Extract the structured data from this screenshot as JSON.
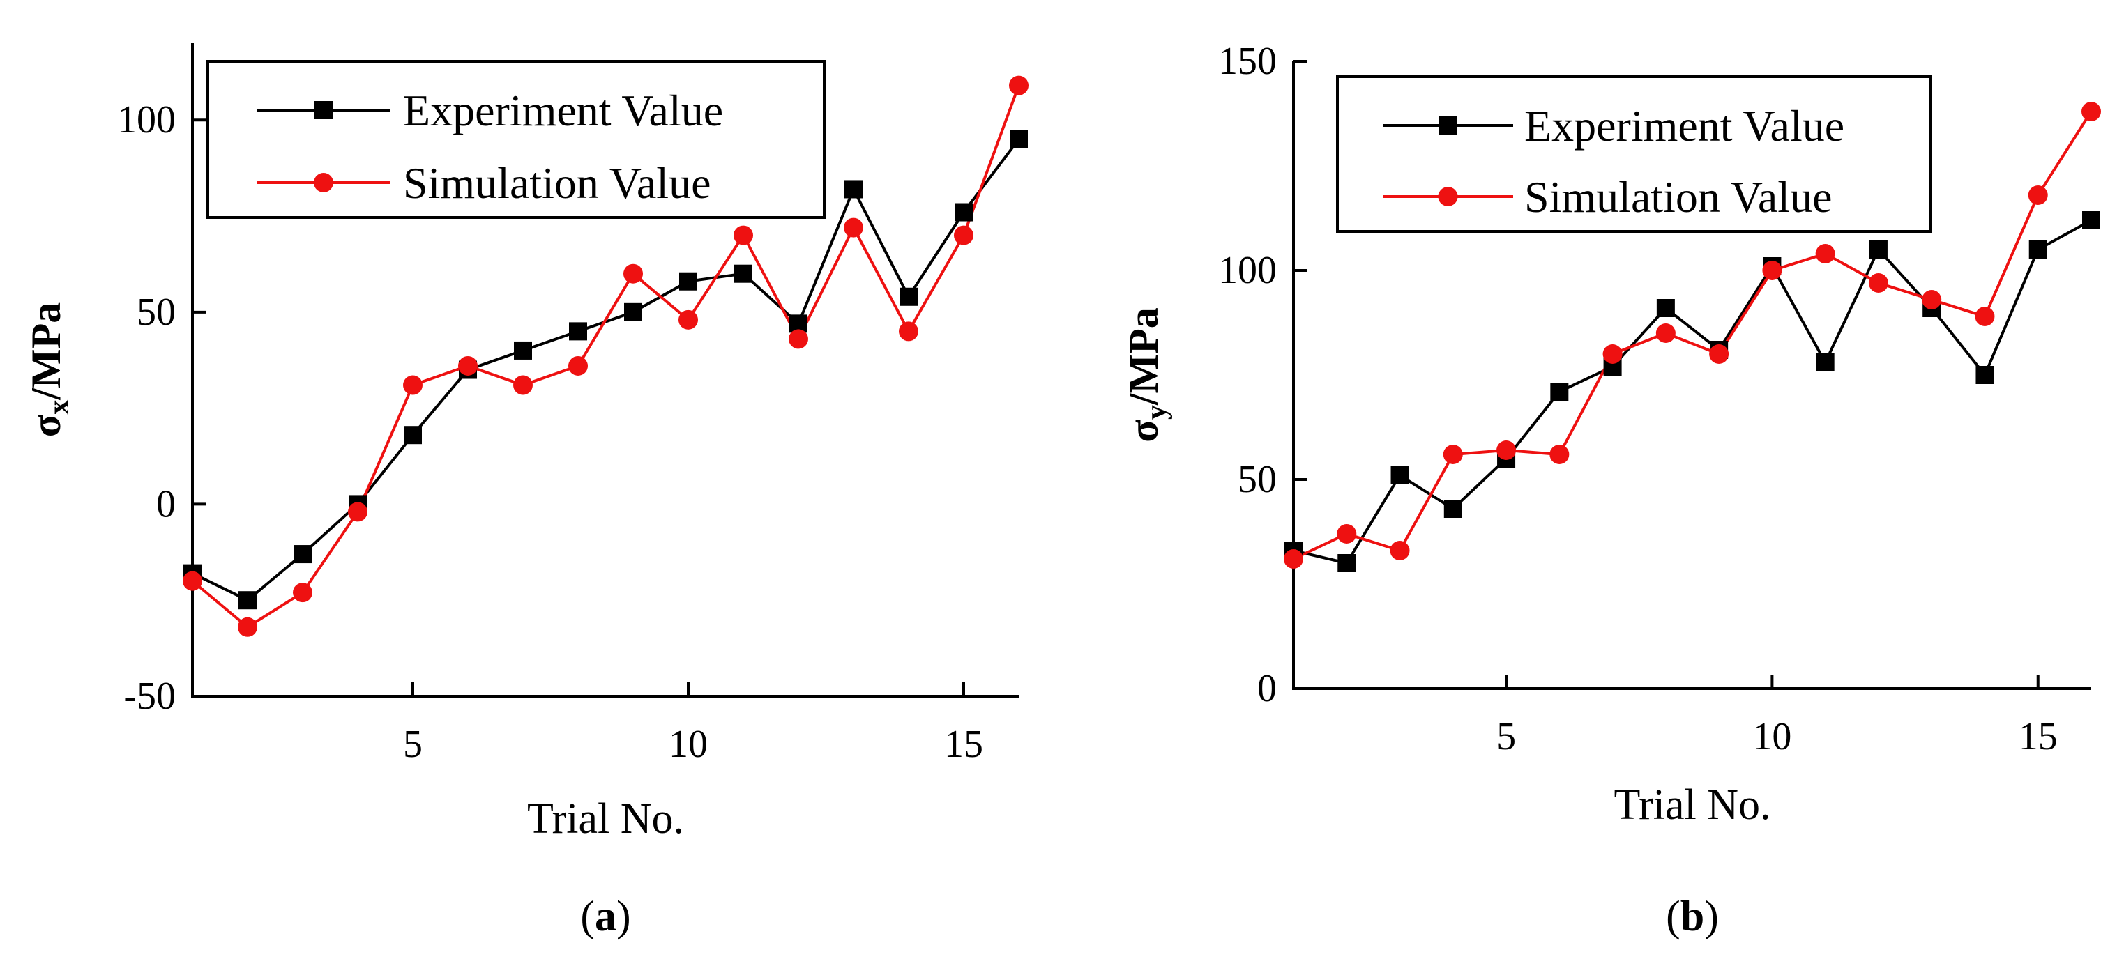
{
  "chart_data": [
    {
      "type": "line",
      "panel": "a",
      "caption_open": "(",
      "caption_letter": "a",
      "caption_close": ")",
      "title": "",
      "xlabel": "Trial No.",
      "ylabel_main": "σ",
      "ylabel_sub": "x",
      "ylabel_rest": "/MPa",
      "xlim": [
        1,
        16
      ],
      "ylim": [
        -50,
        120
      ],
      "x_ticks": [
        5,
        10,
        15
      ],
      "x_tick_labels": [
        "5",
        "10",
        "15"
      ],
      "y_ticks": [
        -50,
        0,
        50,
        100
      ],
      "y_tick_labels": [
        "-50",
        "0",
        "50",
        "100"
      ],
      "x": [
        1,
        2,
        3,
        4,
        5,
        6,
        7,
        8,
        9,
        10,
        11,
        12,
        13,
        14,
        15,
        16
      ],
      "series": [
        {
          "name": "Experiment Value",
          "color": "#000000",
          "marker": "square",
          "values": [
            -18,
            -25,
            -13,
            0,
            18,
            35,
            40,
            45,
            50,
            58,
            60,
            47,
            82,
            54,
            76,
            95
          ]
        },
        {
          "name": "Simulation Value",
          "color": "#ee1111",
          "marker": "circle",
          "values": [
            -20,
            -32,
            -23,
            -2,
            31,
            36,
            31,
            36,
            60,
            48,
            70,
            43,
            72,
            45,
            70,
            109
          ]
        }
      ],
      "legend_position": "top-left"
    },
    {
      "type": "line",
      "panel": "b",
      "caption_open": "(",
      "caption_letter": "b",
      "caption_close": ")",
      "title": "",
      "xlabel": "Trial No.",
      "ylabel_main": "σ",
      "ylabel_sub": "y",
      "ylabel_rest": "/MPa",
      "xlim": [
        1,
        16
      ],
      "ylim": [
        0,
        150
      ],
      "x_ticks": [
        5,
        10,
        15
      ],
      "x_tick_labels": [
        "5",
        "10",
        "15"
      ],
      "y_ticks": [
        0,
        50,
        100,
        150
      ],
      "y_tick_labels": [
        "0",
        "50",
        "100",
        "150"
      ],
      "x": [
        1,
        2,
        3,
        4,
        5,
        6,
        7,
        8,
        9,
        10,
        11,
        12,
        13,
        14,
        15,
        16
      ],
      "series": [
        {
          "name": "Experiment Value",
          "color": "#000000",
          "marker": "square",
          "values": [
            33,
            30,
            51,
            43,
            55,
            71,
            77,
            91,
            81,
            101,
            78,
            105,
            91,
            75,
            105,
            112
          ]
        },
        {
          "name": "Simulation Value",
          "color": "#ee1111",
          "marker": "circle",
          "values": [
            31,
            37,
            33,
            56,
            57,
            56,
            80,
            85,
            80,
            100,
            104,
            97,
            93,
            89,
            118,
            138
          ]
        }
      ],
      "legend_position": "top-left"
    }
  ]
}
